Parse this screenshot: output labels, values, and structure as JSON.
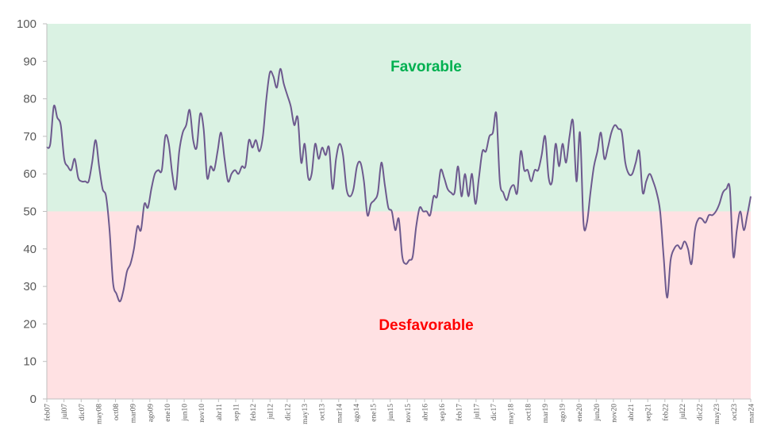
{
  "chart_data": {
    "type": "line",
    "title": "",
    "xlabel": "",
    "ylabel": "",
    "ylim": [
      0,
      100
    ],
    "yticks": [
      0,
      10,
      20,
      30,
      40,
      50,
      60,
      70,
      80,
      90,
      100
    ],
    "grid": false,
    "zones": [
      {
        "label": "Favorable",
        "from": 50,
        "to": 100,
        "fill": "#daf2e3",
        "text_color": "#00b050"
      },
      {
        "label": "Desfavorable",
        "from": 0,
        "to": 50,
        "fill": "#ffe1e3",
        "text_color": "#ff0000"
      }
    ],
    "line_color": "#6d5a8e",
    "x_tick_labels": [
      "feb07",
      "jul07",
      "dic07",
      "may08",
      "oct08",
      "mar09",
      "ago09",
      "ene10",
      "jun10",
      "nov10",
      "abr11",
      "sep11",
      "feb12",
      "jul12",
      "dic12",
      "may13",
      "oct13",
      "mar14",
      "ago14",
      "ene15",
      "jun15",
      "nov15",
      "abr16",
      "sep16",
      "feb17",
      "jul17",
      "dic17",
      "may18",
      "oct18",
      "mar19",
      "ago19",
      "ene20",
      "jun20",
      "nov20",
      "abr21",
      "sep21",
      "feb22",
      "jul22",
      "dic22",
      "may23",
      "oct23",
      "mar24"
    ],
    "series": [
      {
        "values": [
          67,
          68,
          78,
          75,
          73,
          64,
          62,
          61,
          64,
          59,
          58,
          58,
          58,
          63,
          69,
          62,
          56,
          54,
          45,
          31,
          28,
          26,
          29,
          34,
          36,
          40,
          46,
          45,
          52,
          51,
          56,
          60,
          61,
          61,
          70,
          68,
          60,
          56,
          66,
          71,
          73,
          77,
          69,
          67,
          76,
          72,
          59,
          62,
          61,
          66,
          71,
          64,
          58,
          60,
          61,
          60,
          62,
          62,
          69,
          67,
          69,
          66,
          70,
          80,
          87,
          86,
          83,
          88,
          84,
          81,
          78,
          73,
          75,
          63,
          68,
          59,
          60,
          68,
          64,
          67,
          65,
          67,
          56,
          64,
          68,
          65,
          56,
          54,
          56,
          62,
          63,
          58,
          49,
          52,
          53,
          55,
          63,
          57,
          51,
          50,
          45,
          48,
          38,
          36,
          37,
          38,
          46,
          51,
          50,
          50,
          49,
          54,
          54,
          61,
          59,
          56,
          55,
          55,
          62,
          54,
          60,
          54,
          60,
          52,
          59,
          66,
          66,
          70,
          71,
          76,
          58,
          55,
          53,
          56,
          57,
          55,
          66,
          61,
          61,
          58,
          61,
          61,
          65,
          70,
          59,
          58,
          68,
          62,
          68,
          63,
          70,
          74,
          58,
          71,
          47,
          47,
          55,
          62,
          66,
          71,
          64,
          67,
          71,
          73,
          72,
          71,
          63,
          60,
          60,
          63,
          66,
          55,
          58,
          60,
          58,
          55,
          50,
          38,
          27,
          37,
          40,
          41,
          40,
          42,
          40,
          36,
          45,
          48,
          48,
          47,
          49,
          49,
          50,
          52,
          55,
          56,
          56,
          38,
          45,
          50,
          45,
          49,
          54
        ]
      }
    ]
  }
}
